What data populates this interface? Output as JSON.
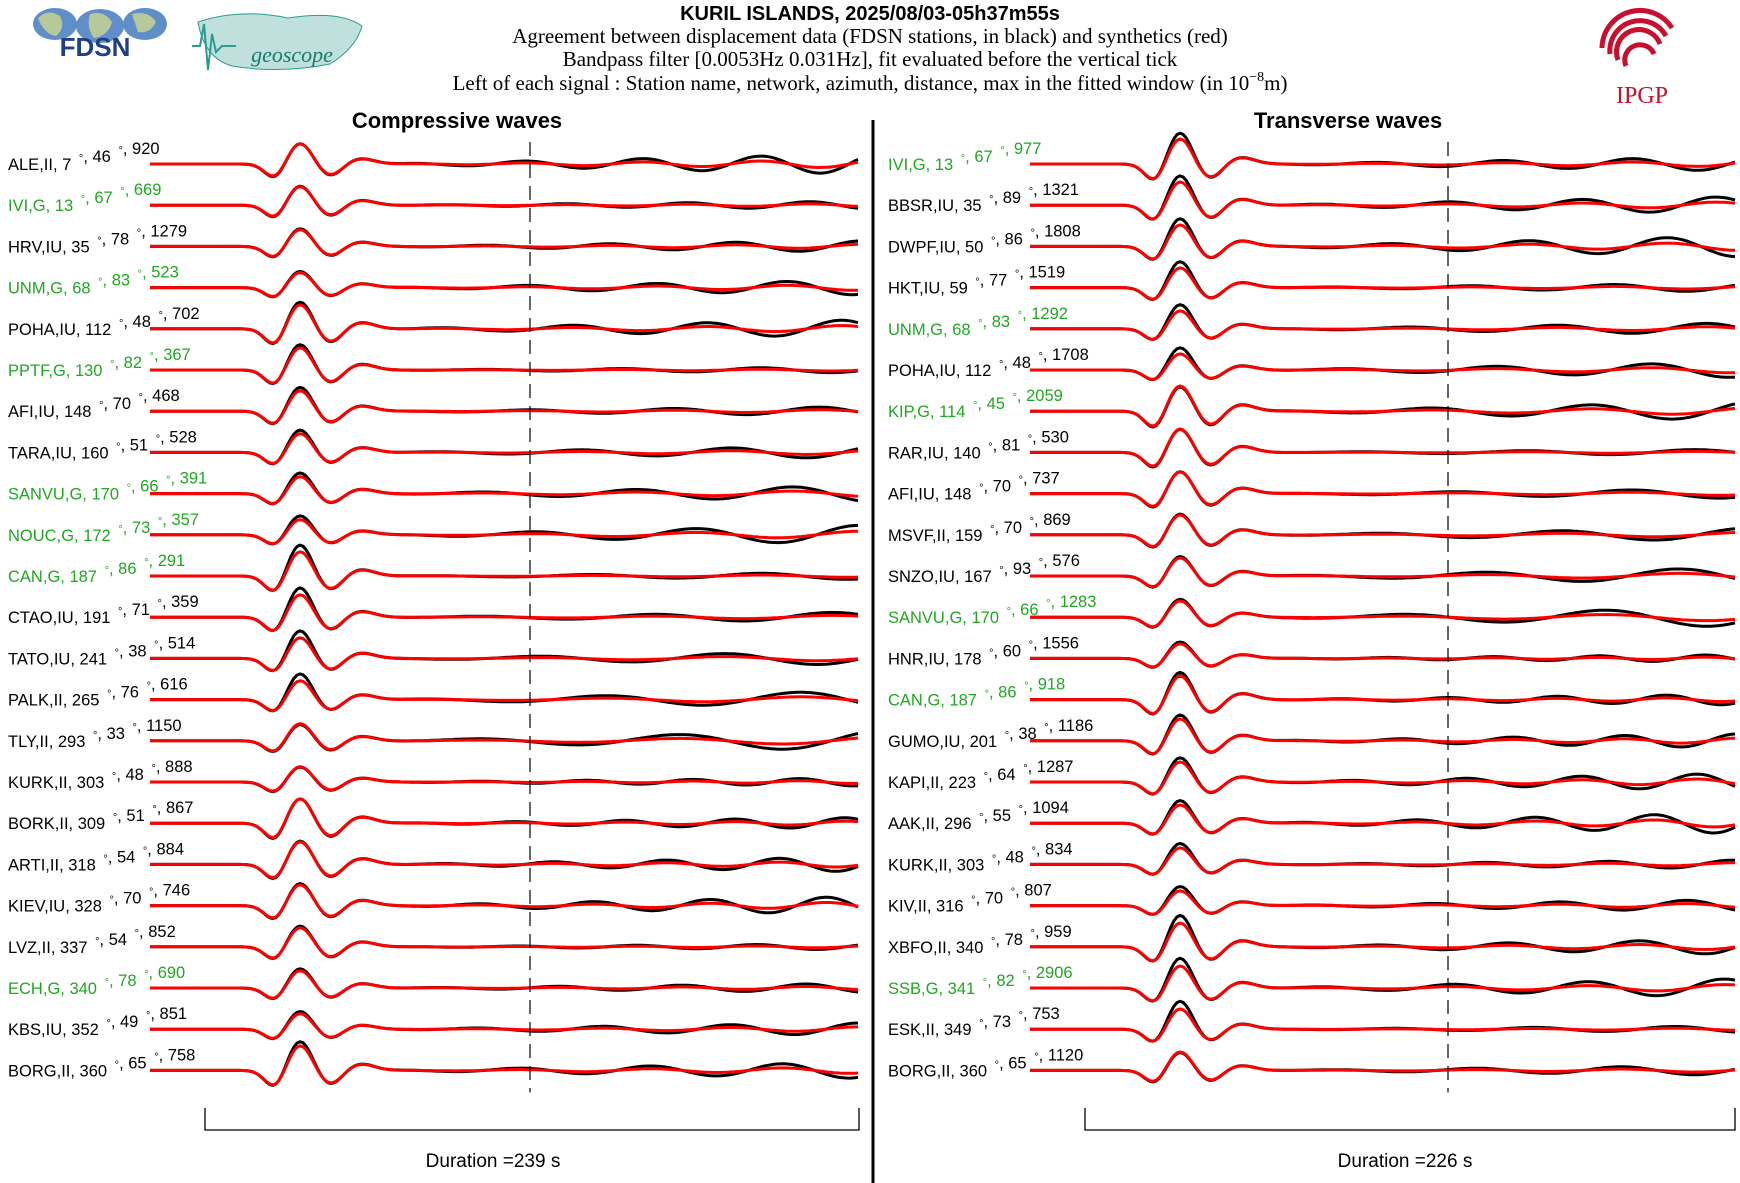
{
  "header": {
    "title": "KURIL ISLANDS, 2025/08/03-05h37m55s",
    "lines": [
      "Agreement between displacement data (FDSN stations, in black) and synthetics (red)",
      "Bandpass filter [0.0053Hz 0.031Hz], fit evaluated before the vertical tick"
    ],
    "line3_text": "Left of each signal : Station name, network, azimuth, distance, max in the fitted window (in 10",
    "line3_exp": "−8",
    "line3_unit": "m)",
    "logos": {
      "fdsn": "FDSN",
      "geoscope": "geoscope",
      "ipgp": "IPGP"
    },
    "colors": {
      "ipgp_red": "#c8102e",
      "geoscope_teal": "#2a9d8f",
      "fdsn_blue": "#2f5fa8"
    }
  },
  "chart_data": [
    {
      "type": "line",
      "title": "Compressive waves",
      "duration_label": "Duration =239 s",
      "duration_s": 239,
      "series": [
        {
          "name": "data",
          "color": "#000000"
        },
        {
          "name": "synthetics",
          "color": "#ff0000"
        }
      ],
      "stations": [
        {
          "sta": "ALE",
          "net": "II",
          "az": "7",
          "dist": "46",
          "max": "920",
          "geoscope": false
        },
        {
          "sta": "IVI",
          "net": "G",
          "az": "13",
          "dist": "67",
          "max": "669",
          "geoscope": true
        },
        {
          "sta": "HRV",
          "net": "IU",
          "az": "35",
          "dist": "78",
          "max": "1279",
          "geoscope": false
        },
        {
          "sta": "UNM",
          "net": "G",
          "az": "68",
          "dist": "83",
          "max": "523",
          "geoscope": true
        },
        {
          "sta": "POHA",
          "net": "IU",
          "az": "112",
          "dist": "48",
          "max": "702",
          "geoscope": false
        },
        {
          "sta": "PPTF",
          "net": "G",
          "az": "130",
          "dist": "82",
          "max": "367",
          "geoscope": true
        },
        {
          "sta": "AFI",
          "net": "IU",
          "az": "148",
          "dist": "70",
          "max": "468",
          "geoscope": false
        },
        {
          "sta": "TARA",
          "net": "IU",
          "az": "160",
          "dist": "51",
          "max": "528",
          "geoscope": false
        },
        {
          "sta": "SANVU",
          "net": "G",
          "az": "170",
          "dist": "66",
          "max": "391",
          "geoscope": true
        },
        {
          "sta": "NOUC",
          "net": "G",
          "az": "172",
          "dist": "73",
          "max": "357",
          "geoscope": true
        },
        {
          "sta": "CAN",
          "net": "G",
          "az": "187",
          "dist": "86",
          "max": "291",
          "geoscope": true
        },
        {
          "sta": "CTAO",
          "net": "IU",
          "az": "191",
          "dist": "71",
          "max": "359",
          "geoscope": false
        },
        {
          "sta": "TATO",
          "net": "IU",
          "az": "241",
          "dist": "38",
          "max": "514",
          "geoscope": false
        },
        {
          "sta": "PALK",
          "net": "II",
          "az": "265",
          "dist": "76",
          "max": "616",
          "geoscope": false
        },
        {
          "sta": "TLY",
          "net": "II",
          "az": "293",
          "dist": "33",
          "max": "1150",
          "geoscope": false
        },
        {
          "sta": "KURK",
          "net": "II",
          "az": "303",
          "dist": "48",
          "max": "888",
          "geoscope": false
        },
        {
          "sta": "BORK",
          "net": "II",
          "az": "309",
          "dist": "51",
          "max": "867",
          "geoscope": false
        },
        {
          "sta": "ARTI",
          "net": "II",
          "az": "318",
          "dist": "54",
          "max": "884",
          "geoscope": false
        },
        {
          "sta": "KIEV",
          "net": "IU",
          "az": "328",
          "dist": "70",
          "max": "746",
          "geoscope": false
        },
        {
          "sta": "LVZ",
          "net": "II",
          "az": "337",
          "dist": "54",
          "max": "852",
          "geoscope": false
        },
        {
          "sta": "ECH",
          "net": "G",
          "az": "340",
          "dist": "78",
          "max": "690",
          "geoscope": true
        },
        {
          "sta": "KBS",
          "net": "IU",
          "az": "352",
          "dist": "49",
          "max": "851",
          "geoscope": false
        },
        {
          "sta": "BORG",
          "net": "II",
          "az": "360",
          "dist": "65",
          "max": "758",
          "geoscope": false
        }
      ]
    },
    {
      "type": "line",
      "title": "Transverse waves",
      "duration_label": "Duration =226 s",
      "duration_s": 226,
      "series": [
        {
          "name": "data",
          "color": "#000000"
        },
        {
          "name": "synthetics",
          "color": "#ff0000"
        }
      ],
      "stations": [
        {
          "sta": "IVI",
          "net": "G",
          "az": "13",
          "dist": "67",
          "max": "977",
          "geoscope": true
        },
        {
          "sta": "BBSR",
          "net": "IU",
          "az": "35",
          "dist": "89",
          "max": "1321",
          "geoscope": false
        },
        {
          "sta": "DWPF",
          "net": "IU",
          "az": "50",
          "dist": "86",
          "max": "1808",
          "geoscope": false
        },
        {
          "sta": "HKT",
          "net": "IU",
          "az": "59",
          "dist": "77",
          "max": "1519",
          "geoscope": false
        },
        {
          "sta": "UNM",
          "net": "G",
          "az": "68",
          "dist": "83",
          "max": "1292",
          "geoscope": true
        },
        {
          "sta": "POHA",
          "net": "IU",
          "az": "112",
          "dist": "48",
          "max": "1708",
          "geoscope": false
        },
        {
          "sta": "KIP",
          "net": "G",
          "az": "114",
          "dist": "45",
          "max": "2059",
          "geoscope": true
        },
        {
          "sta": "RAR",
          "net": "IU",
          "az": "140",
          "dist": "81",
          "max": "530",
          "geoscope": false
        },
        {
          "sta": "AFI",
          "net": "IU",
          "az": "148",
          "dist": "70",
          "max": "737",
          "geoscope": false
        },
        {
          "sta": "MSVF",
          "net": "II",
          "az": "159",
          "dist": "70",
          "max": "869",
          "geoscope": false
        },
        {
          "sta": "SNZO",
          "net": "IU",
          "az": "167",
          "dist": "93",
          "max": "576",
          "geoscope": false
        },
        {
          "sta": "SANVU",
          "net": "G",
          "az": "170",
          "dist": "66",
          "max": "1283",
          "geoscope": true
        },
        {
          "sta": "HNR",
          "net": "IU",
          "az": "178",
          "dist": "60",
          "max": "1556",
          "geoscope": false
        },
        {
          "sta": "CAN",
          "net": "G",
          "az": "187",
          "dist": "86",
          "max": "918",
          "geoscope": true
        },
        {
          "sta": "GUMO",
          "net": "IU",
          "az": "201",
          "dist": "38",
          "max": "1186",
          "geoscope": false
        },
        {
          "sta": "KAPI",
          "net": "II",
          "az": "223",
          "dist": "64",
          "max": "1287",
          "geoscope": false
        },
        {
          "sta": "AAK",
          "net": "II",
          "az": "296",
          "dist": "55",
          "max": "1094",
          "geoscope": false
        },
        {
          "sta": "KURK",
          "net": "II",
          "az": "303",
          "dist": "48",
          "max": "834",
          "geoscope": false
        },
        {
          "sta": "KIV",
          "net": "II",
          "az": "316",
          "dist": "70",
          "max": "807",
          "geoscope": false
        },
        {
          "sta": "XBFO",
          "net": "II",
          "az": "340",
          "dist": "78",
          "max": "959",
          "geoscope": false
        },
        {
          "sta": "SSB",
          "net": "G",
          "az": "341",
          "dist": "82",
          "max": "2906",
          "geoscope": true
        },
        {
          "sta": "ESK",
          "net": "II",
          "az": "349",
          "dist": "73",
          "max": "753",
          "geoscope": false
        },
        {
          "sta": "BORG",
          "net": "II",
          "az": "360",
          "dist": "65",
          "max": "1120",
          "geoscope": false
        }
      ]
    }
  ]
}
